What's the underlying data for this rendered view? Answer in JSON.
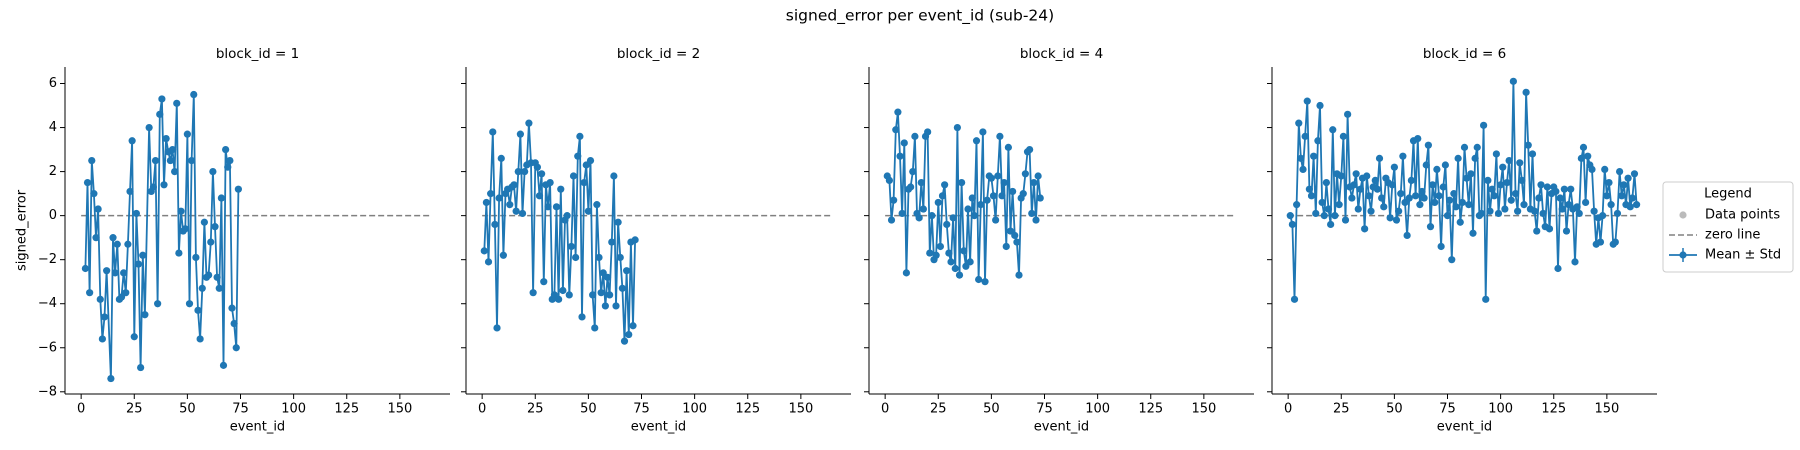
{
  "title": "signed_error per event_id (sub-24)",
  "zero_line": {
    "name": "zero line",
    "y": 0,
    "x": [
      0,
      165
    ],
    "color": "#808080"
  },
  "legend": {
    "title": "Legend",
    "loc": "center right",
    "entries": [
      {
        "name": "Data points",
        "color": "#bbbbbb"
      },
      {
        "name": "zero line",
        "color": "#808080"
      },
      {
        "name": "Mean ± Std",
        "color": "#1f77b4"
      }
    ]
  },
  "chart_data": [
    {
      "type": "line",
      "title": "block_id = 1",
      "xlabel": "event_id",
      "ylabel": "signed_error",
      "x": [
        2,
        3,
        4,
        5,
        6,
        7,
        8,
        9,
        10,
        11,
        12,
        14,
        15,
        16,
        17,
        18,
        19,
        20,
        21,
        22,
        23,
        24,
        25,
        26,
        27,
        28,
        29,
        30,
        32,
        33,
        34,
        35,
        36,
        37,
        38,
        39,
        40,
        41,
        42,
        43,
        44,
        45,
        46,
        47,
        48,
        49,
        50,
        51,
        52,
        53,
        54,
        55,
        56,
        57,
        58,
        59,
        60,
        61,
        62,
        63,
        64,
        65,
        66,
        67,
        68,
        69,
        70,
        71,
        72,
        73,
        74
      ],
      "series": [
        {
          "color": "#1f77b4",
          "values": [
            -2.4,
            1.5,
            -3.5,
            2.5,
            1,
            -1,
            0.3,
            -3.8,
            -5.6,
            -4.6,
            -2.5,
            -7.4,
            -1,
            -2.6,
            -1.3,
            -3.8,
            -3.7,
            -2.6,
            -3.5,
            -1.3,
            1.1,
            3.4,
            -5.5,
            0.1,
            -2.2,
            -6.9,
            -1.8,
            -4.5,
            4,
            1.1,
            1.3,
            2.5,
            -4,
            4.6,
            5.3,
            1.4,
            3.5,
            2.9,
            2.5,
            3,
            2,
            5.1,
            -1.7,
            0.2,
            -0.7,
            -0.6,
            3.7,
            -4,
            2.5,
            5.5,
            -1.9,
            -4.3,
            -5.6,
            -3.3,
            -0.3,
            -2.8,
            -2.7,
            -1.2,
            2,
            -0.5,
            -2.8,
            -3.3,
            0.8,
            -6.8,
            3,
            2.2,
            2.5,
            -4.2,
            -4.9,
            -6,
            1.2
          ]
        }
      ],
      "xlim": [
        -7.6,
        173.6
      ],
      "ylim": [
        -8.1,
        6.75
      ],
      "xticks": [
        0,
        25,
        50,
        75,
        100,
        125,
        150
      ],
      "yticks": [
        {
          "value": -8,
          "label": "−8"
        },
        {
          "value": -6,
          "label": "−6"
        },
        {
          "value": -4,
          "label": "−4"
        },
        {
          "value": -2,
          "label": "−2"
        },
        0,
        2,
        4,
        6
      ]
    },
    {
      "type": "line",
      "title": "block_id = 2",
      "xlabel": "event_id",
      "x": [
        1,
        2,
        3,
        4,
        5,
        6,
        7,
        8,
        9,
        10,
        11,
        12,
        13,
        14,
        15,
        16,
        17,
        18,
        19,
        20,
        21,
        22,
        23,
        24,
        25,
        26,
        27,
        28,
        29,
        30,
        31,
        32,
        33,
        34,
        35,
        36,
        37,
        38,
        39,
        40,
        41,
        42,
        43,
        44,
        45,
        46,
        47,
        48,
        49,
        50,
        51,
        52,
        53,
        54,
        55,
        56,
        57,
        58,
        59,
        60,
        61,
        62,
        63,
        64,
        65,
        66,
        67,
        68,
        69,
        70,
        71,
        72
      ],
      "series": [
        {
          "color": "#1f77b4",
          "values": [
            -1.6,
            0.6,
            -2.1,
            1,
            3.8,
            -0.4,
            -5.1,
            0.8,
            2.6,
            -1.8,
            1,
            1.2,
            0.5,
            1.3,
            1.4,
            0.2,
            2,
            3.7,
            0.1,
            2,
            2.3,
            4.2,
            2.4,
            -3.5,
            2.4,
            2.2,
            0.9,
            1.9,
            -3,
            1.4,
            0.4,
            1.5,
            -3.8,
            -3.6,
            0.4,
            -3.8,
            1.2,
            -3.4,
            -0.2,
            0,
            -3.6,
            -1.4,
            1.8,
            -1.9,
            2.7,
            3.6,
            -4.6,
            1.5,
            2.3,
            0.2,
            2.5,
            -3.6,
            -5.1,
            0.5,
            -1.9,
            -3.5,
            -2.6,
            -4.1,
            -2.8,
            -3.6,
            -1.2,
            1.8,
            -4.1,
            -0.3,
            -1.9,
            -3.3,
            -5.7,
            -2.5,
            -5.4,
            -1.2,
            -5,
            -1.1
          ]
        }
      ],
      "xlim": [
        -7.6,
        173.6
      ],
      "ylim": [
        -8.1,
        6.75
      ],
      "xticks": [
        0,
        25,
        50,
        75,
        100,
        125,
        150
      ],
      "yticks": [
        -8,
        -6,
        -4,
        -2,
        0,
        2,
        4,
        6
      ]
    },
    {
      "type": "line",
      "title": "block_id = 4",
      "xlabel": "event_id",
      "x": [
        1,
        2,
        3,
        4,
        5,
        6,
        7,
        8,
        9,
        10,
        11,
        12,
        13,
        14,
        15,
        16,
        17,
        18,
        19,
        20,
        21,
        22,
        23,
        24,
        25,
        26,
        27,
        28,
        29,
        30,
        31,
        32,
        33,
        34,
        35,
        36,
        37,
        38,
        39,
        40,
        41,
        42,
        43,
        44,
        45,
        46,
        47,
        48,
        49,
        50,
        51,
        52,
        53,
        54,
        55,
        56,
        57,
        58,
        59,
        60,
        61,
        62,
        63,
        64,
        65,
        66,
        67,
        68,
        69,
        70,
        71,
        72,
        73
      ],
      "series": [
        {
          "color": "#1f77b4",
          "values": [
            1.8,
            1.6,
            -0.2,
            0.7,
            3.9,
            4.7,
            2.7,
            0.1,
            3.3,
            -2.6,
            1.2,
            1.3,
            2,
            3.6,
            0.1,
            -0.1,
            1.5,
            0.3,
            3.6,
            3.8,
            -1.7,
            0,
            -2,
            -1.8,
            0.6,
            -1.4,
            0.9,
            1.4,
            -0.4,
            -1.7,
            -2.1,
            -0.1,
            -2.4,
            4,
            -2.7,
            1.5,
            -1.6,
            -2.3,
            0.3,
            -2.1,
            0.8,
            0,
            3.4,
            -2.9,
            0.5,
            3.8,
            -3,
            0.7,
            1.8,
            1.7,
            0.9,
            -0.2,
            1.8,
            3.6,
            0.9,
            1.5,
            -1.4,
            3.1,
            -0.7,
            1.1,
            -0.9,
            -1.2,
            -2.7,
            0.8,
            1,
            1.9,
            2.9,
            3,
            0.1,
            1.5,
            -0.2,
            1.8,
            0.8
          ]
        }
      ],
      "xlim": [
        -7.6,
        173.6
      ],
      "ylim": [
        -8.1,
        6.75
      ],
      "xticks": [
        0,
        25,
        50,
        75,
        100,
        125,
        150
      ],
      "yticks": [
        -8,
        -6,
        -4,
        -2,
        0,
        2,
        4,
        6
      ]
    },
    {
      "type": "line",
      "title": "block_id = 6",
      "xlabel": "event_id",
      "x": [
        1,
        2,
        3,
        4,
        5,
        6,
        7,
        8,
        9,
        10,
        11,
        12,
        13,
        14,
        15,
        16,
        17,
        18,
        19,
        20,
        21,
        22,
        23,
        24,
        25,
        26,
        27,
        28,
        29,
        30,
        31,
        32,
        33,
        34,
        35,
        36,
        37,
        38,
        39,
        40,
        41,
        42,
        43,
        44,
        45,
        46,
        47,
        48,
        49,
        50,
        51,
        52,
        53,
        54,
        55,
        56,
        57,
        58,
        59,
        60,
        61,
        62,
        63,
        64,
        65,
        66,
        67,
        68,
        69,
        70,
        71,
        72,
        73,
        74,
        75,
        76,
        77,
        78,
        79,
        80,
        81,
        82,
        83,
        84,
        85,
        86,
        87,
        88,
        89,
        90,
        91,
        92,
        93,
        94,
        95,
        96,
        97,
        98,
        99,
        100,
        101,
        102,
        103,
        104,
        105,
        106,
        107,
        108,
        109,
        110,
        111,
        112,
        113,
        114,
        115,
        116,
        117,
        118,
        119,
        120,
        121,
        122,
        123,
        124,
        125,
        126,
        127,
        128,
        129,
        130,
        131,
        132,
        133,
        134,
        135,
        136,
        137,
        138,
        139,
        140,
        141,
        142,
        143,
        144,
        145,
        146,
        147,
        148,
        149,
        150,
        151,
        152,
        153,
        154,
        155,
        156,
        157,
        158,
        159,
        160,
        161,
        162,
        163,
        164
      ],
      "series": [
        {
          "color": "#1f77b4",
          "values": [
            0,
            -0.4,
            -3.8,
            0.5,
            4.2,
            2.6,
            2.1,
            3.6,
            5.2,
            1.2,
            0.9,
            2.7,
            0.1,
            3.4,
            5,
            0.6,
            0,
            1.5,
            0.3,
            -0.4,
            3.9,
            0,
            1.9,
            0.5,
            1.8,
            3.6,
            -0.2,
            4.6,
            1.3,
            0.8,
            1.4,
            1.9,
            0.3,
            1.2,
            1.7,
            -0.6,
            1.8,
            0.9,
            0.2,
            1.3,
            1.6,
            1.2,
            2.6,
            0.8,
            0.4,
            1.7,
            1.5,
            -0.1,
            1.4,
            2.2,
            -0.2,
            0.2,
            1,
            2.7,
            0.6,
            -0.9,
            0.8,
            1.6,
            3.4,
            0.9,
            3.5,
            0.5,
            1.1,
            0.8,
            2.3,
            3.2,
            -0.5,
            1.4,
            0.6,
            2.1,
            0.9,
            -1.4,
            1.3,
            2.3,
            0,
            0.7,
            -2,
            1,
            0.4,
            2.6,
            -0.3,
            0.6,
            3.1,
            1.7,
            0.5,
            1.9,
            -0.8,
            2.6,
            3.1,
            0,
            0.1,
            4.1,
            -3.8,
            1.6,
            0.2,
            1.2,
            0.9,
            2.8,
            0.1,
            1.4,
            2.2,
            0.3,
            1.5,
            2.5,
            0.7,
            6.1,
            1,
            0.2,
            2.4,
            1.6,
            0.5,
            5.6,
            3.2,
            0.3,
            2.8,
            0.2,
            -0.7,
            0.8,
            1.4,
            0.1,
            -0.5,
            1.3,
            -0.6,
            1,
            1.3,
            1.1,
            -2.4,
            0.8,
            0.3,
            1.2,
            -0.7,
            0.5,
            1.2,
            0.3,
            -2.1,
            0.4,
            0.1,
            2.6,
            3.1,
            0.6,
            2.7,
            2.3,
            2.1,
            0.2,
            -1.3,
            -0.1,
            -1.2,
            0,
            2.1,
            0.9,
            1.5,
            0.5,
            -1.3,
            -1.2,
            0.1,
            2,
            0.9,
            1.4,
            0.5,
            1.7,
            0.4,
            0.8,
            1.9,
            0.5
          ]
        }
      ],
      "xlim": [
        -7.6,
        173.6
      ],
      "ylim": [
        -8.1,
        6.75
      ],
      "xticks": [
        0,
        25,
        50,
        75,
        100,
        125,
        150
      ],
      "yticks": [
        -8,
        -6,
        -4,
        -2,
        0,
        2,
        4,
        6
      ]
    }
  ]
}
